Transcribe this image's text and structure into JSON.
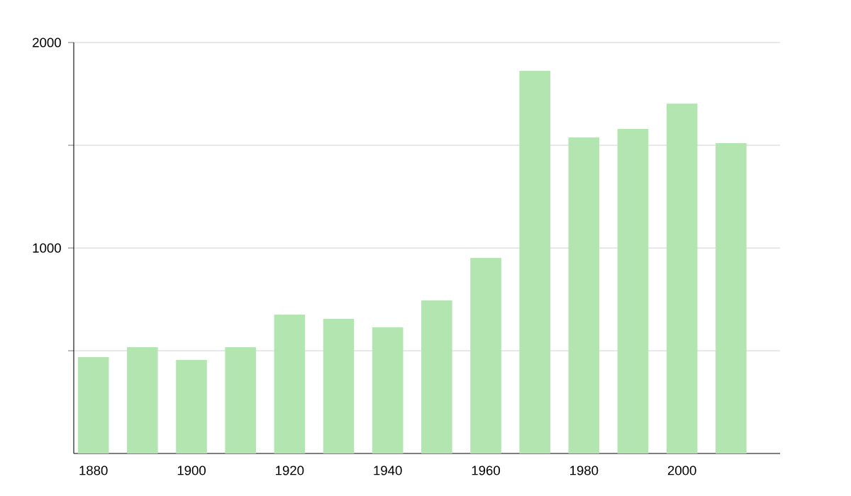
{
  "chart_data": {
    "type": "bar",
    "x": [
      1880,
      1890,
      1900,
      1910,
      1920,
      1930,
      1940,
      1950,
      1960,
      1970,
      1980,
      1990,
      2000,
      2010
    ],
    "values": [
      469,
      517,
      455,
      517,
      676,
      655,
      614,
      745,
      952,
      1862,
      1538,
      1579,
      1703,
      1510
    ],
    "color": "#b3e5b0",
    "xlim": [
      1876,
      2020
    ],
    "xticks": [
      1880,
      1900,
      1920,
      1940,
      1960,
      1980,
      2000
    ],
    "ylim": [
      0,
      2000
    ],
    "yticks": [
      {
        "value": 500,
        "label": null
      },
      1000,
      {
        "value": 1500,
        "label": null
      },
      2000
    ],
    "grid": "y"
  }
}
